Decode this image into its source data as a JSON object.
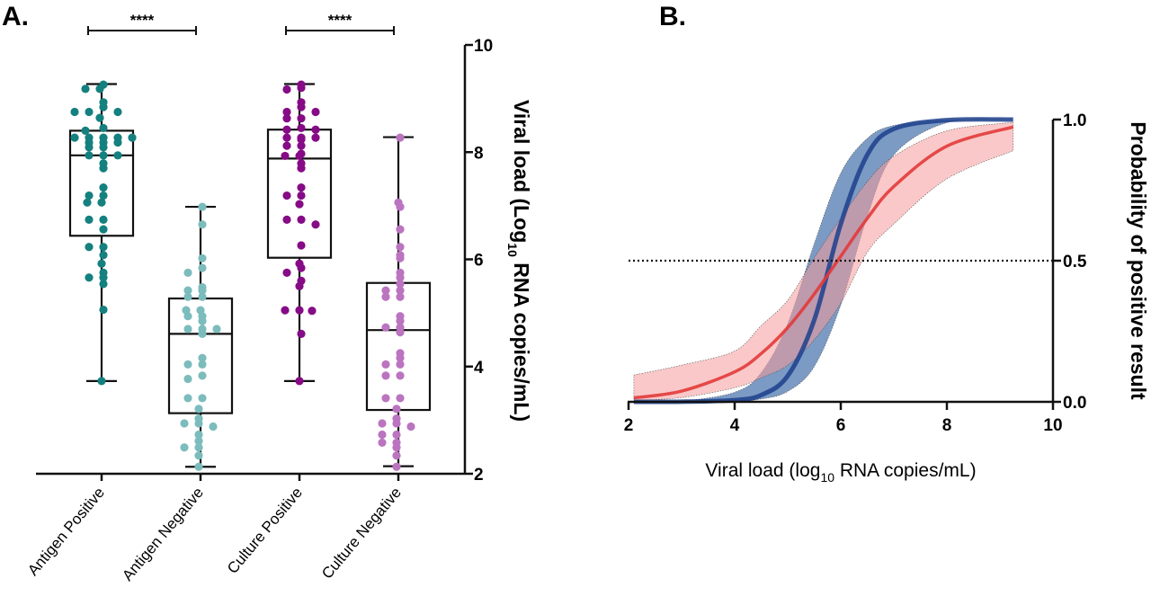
{
  "chart_data": [
    {
      "panel_label": "A.",
      "type": "box-scatter",
      "ylabel_main": "Viral load (Log",
      "ylabel_sub": "10",
      "ylabel_rest": " RNA copies/mL)",
      "ylim": [
        2,
        10
      ],
      "yticks": [
        "2",
        "4",
        "6",
        "8",
        "10"
      ],
      "y_axis_side": "right",
      "categories": [
        "Antigen Positive",
        "Antigen Negative",
        "Culture Positive",
        "Culture Negative"
      ],
      "colors": [
        "#14807f",
        "#7cbcbc",
        "#860b86",
        "#bb74c0"
      ],
      "boxes": [
        {
          "min": 3.73,
          "q1": 6.44,
          "median": 7.94,
          "q3": 8.4,
          "max": 9.27
        },
        {
          "min": 2.13,
          "q1": 3.13,
          "median": 4.61,
          "q3": 5.27,
          "max": 6.98
        },
        {
          "min": 3.73,
          "q1": 6.03,
          "median": 7.88,
          "q3": 8.42,
          "max": 9.27
        },
        {
          "min": 2.14,
          "q1": 3.19,
          "median": 4.68,
          "q3": 5.56,
          "max": 8.28
        }
      ],
      "points": [
        [
          9.26,
          9.18,
          9.18,
          8.93,
          8.84,
          8.75,
          8.75,
          8.75,
          8.64,
          8.45,
          8.4,
          8.27,
          8.27,
          8.27,
          8.27,
          8.27,
          8.18,
          8.18,
          8.18,
          8.09,
          8.09,
          7.94,
          7.94,
          7.94,
          7.79,
          7.7,
          7.34,
          7.19,
          7.19,
          7.06,
          7.06,
          6.74,
          6.74,
          6.56,
          6.23,
          6.23,
          6.08,
          5.92,
          5.75,
          5.66,
          5.66,
          5.54,
          5.06,
          3.73
        ],
        [
          6.98,
          6.65,
          6.02,
          5.84,
          5.75,
          5.48,
          5.42,
          5.42,
          5.3,
          5.3,
          5.05,
          5.05,
          4.94,
          4.94,
          4.85,
          4.7,
          4.7,
          4.7,
          4.61,
          4.16,
          4.04,
          4.04,
          3.83,
          3.77,
          3.41,
          3.41,
          3.21,
          3.03,
          2.94,
          2.94,
          2.88,
          2.73,
          2.61,
          2.49,
          2.49,
          2.34,
          2.13
        ],
        [
          9.26,
          9.2,
          9.17,
          8.93,
          8.84,
          8.75,
          8.75,
          8.63,
          8.63,
          8.45,
          8.42,
          8.42,
          8.27,
          8.27,
          8.27,
          8.24,
          8.12,
          8.12,
          7.97,
          7.93,
          7.93,
          7.79,
          7.7,
          7.34,
          7.19,
          7.19,
          7.03,
          6.74,
          6.74,
          6.65,
          6.26,
          5.92,
          5.84,
          5.75,
          5.6,
          5.5,
          5.05,
          5.05,
          5.04,
          4.61,
          3.73
        ],
        [
          8.27,
          7.06,
          6.98,
          6.56,
          6.23,
          6.08,
          6.02,
          5.75,
          5.66,
          5.54,
          5.42,
          5.42,
          5.3,
          5.3,
          4.94,
          4.85,
          4.73,
          4.73,
          4.64,
          4.25,
          4.16,
          4.04,
          4.04,
          3.83,
          3.83,
          3.41,
          3.41,
          3.21,
          3.03,
          2.94,
          2.94,
          2.88,
          2.73,
          2.73,
          2.58,
          2.58,
          2.49,
          2.34,
          2.13
        ]
      ],
      "significance": [
        {
          "from": 0,
          "to": 1,
          "label": "****"
        },
        {
          "from": 2,
          "to": 3,
          "label": "****"
        }
      ]
    },
    {
      "panel_label": "B.",
      "type": "line",
      "xlabel_main": "Viral load (log",
      "xlabel_sub": "10",
      "xlabel_rest": " RNA copies/mL)",
      "ylabel": "Probability of positive result",
      "xlim": [
        2,
        10
      ],
      "ylim": [
        0,
        1
      ],
      "xticks": [
        "2",
        "4",
        "6",
        "8",
        "10"
      ],
      "yticks": [
        "0.0",
        "0.5",
        "1.0"
      ],
      "y_axis_side": "right",
      "reference_line": {
        "y": 0.5,
        "style": "dotted"
      },
      "x": [
        2.1,
        3,
        4,
        4.5,
        5,
        5.5,
        6,
        6.5,
        7,
        8,
        9.25
      ],
      "series": [
        {
          "color": "#1c3f8c",
          "band_color": "#4f78b0",
          "values": [
            0.0,
            0.0004,
            0.006,
            0.024,
            0.092,
            0.29,
            0.63,
            0.875,
            0.967,
            0.998,
            1.0
          ],
          "upper": [
            0.0004,
            0.003,
            0.034,
            0.103,
            0.277,
            0.56,
            0.81,
            0.933,
            0.979,
            0.998,
            1.0
          ],
          "lower": [
            0.0,
            0.0002,
            0.003,
            0.01,
            0.037,
            0.125,
            0.343,
            0.657,
            0.875,
            0.989,
            1.0
          ]
        },
        {
          "color": "#e23a3a",
          "band_color": "#f59a9a",
          "values": [
            0.014,
            0.038,
            0.106,
            0.171,
            0.263,
            0.382,
            0.516,
            0.65,
            0.763,
            0.906,
            0.974
          ],
          "upper": [
            0.095,
            0.13,
            0.18,
            0.27,
            0.36,
            0.51,
            0.65,
            0.78,
            0.87,
            0.96,
            0.99
          ],
          "lower": [
            0.005,
            0.015,
            0.05,
            0.085,
            0.13,
            0.22,
            0.35,
            0.53,
            0.63,
            0.79,
            0.89
          ]
        }
      ]
    }
  ]
}
